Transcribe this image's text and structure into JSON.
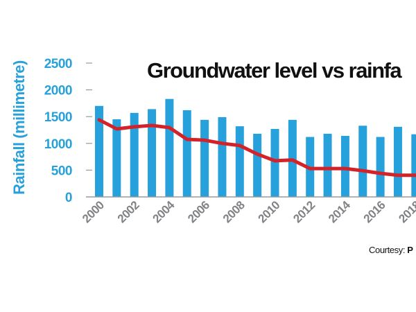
{
  "chart_data": {
    "type": "bar",
    "title": "Groundwater level vs rainfa",
    "xlabel": "",
    "ylabel": "Rainfall (millimetre)",
    "ylim": [
      0,
      2500
    ],
    "yticks": [
      0,
      500,
      1000,
      1500,
      2000,
      2500
    ],
    "ytick_labels": [
      "0",
      "500",
      "1000",
      "1500",
      "2000",
      "2500"
    ],
    "categories": [
      "2000",
      "2001",
      "2002",
      "2003",
      "2004",
      "2005",
      "2006",
      "2007",
      "2008",
      "2009",
      "2010",
      "2011",
      "2012",
      "2013",
      "2014",
      "2015",
      "2016",
      "2017",
      "2018"
    ],
    "xtick_labels": [
      "2000",
      "2002",
      "2004",
      "2006",
      "2008",
      "2010",
      "2012",
      "2014",
      "2016",
      "2018"
    ],
    "grid": false,
    "series": [
      {
        "name": "Rainfall",
        "kind": "bar",
        "color": "#27a1db",
        "values": [
          1700,
          1450,
          1570,
          1640,
          1830,
          1620,
          1440,
          1490,
          1320,
          1180,
          1270,
          1440,
          1120,
          1180,
          1140,
          1330,
          1120,
          1310,
          1170
        ]
      },
      {
        "name": "Groundwater level",
        "kind": "line",
        "color": "#d2232a",
        "note": "plotted on a secondary axis not visible in crop; values expressed on the rainfall scale",
        "values": [
          1440,
          1270,
          1310,
          1335,
          1295,
          1075,
          1060,
          1000,
          960,
          800,
          675,
          690,
          530,
          530,
          530,
          490,
          440,
          405,
          405
        ]
      }
    ],
    "credit_prefix": "Courtesy: ",
    "credit_source": "P"
  }
}
